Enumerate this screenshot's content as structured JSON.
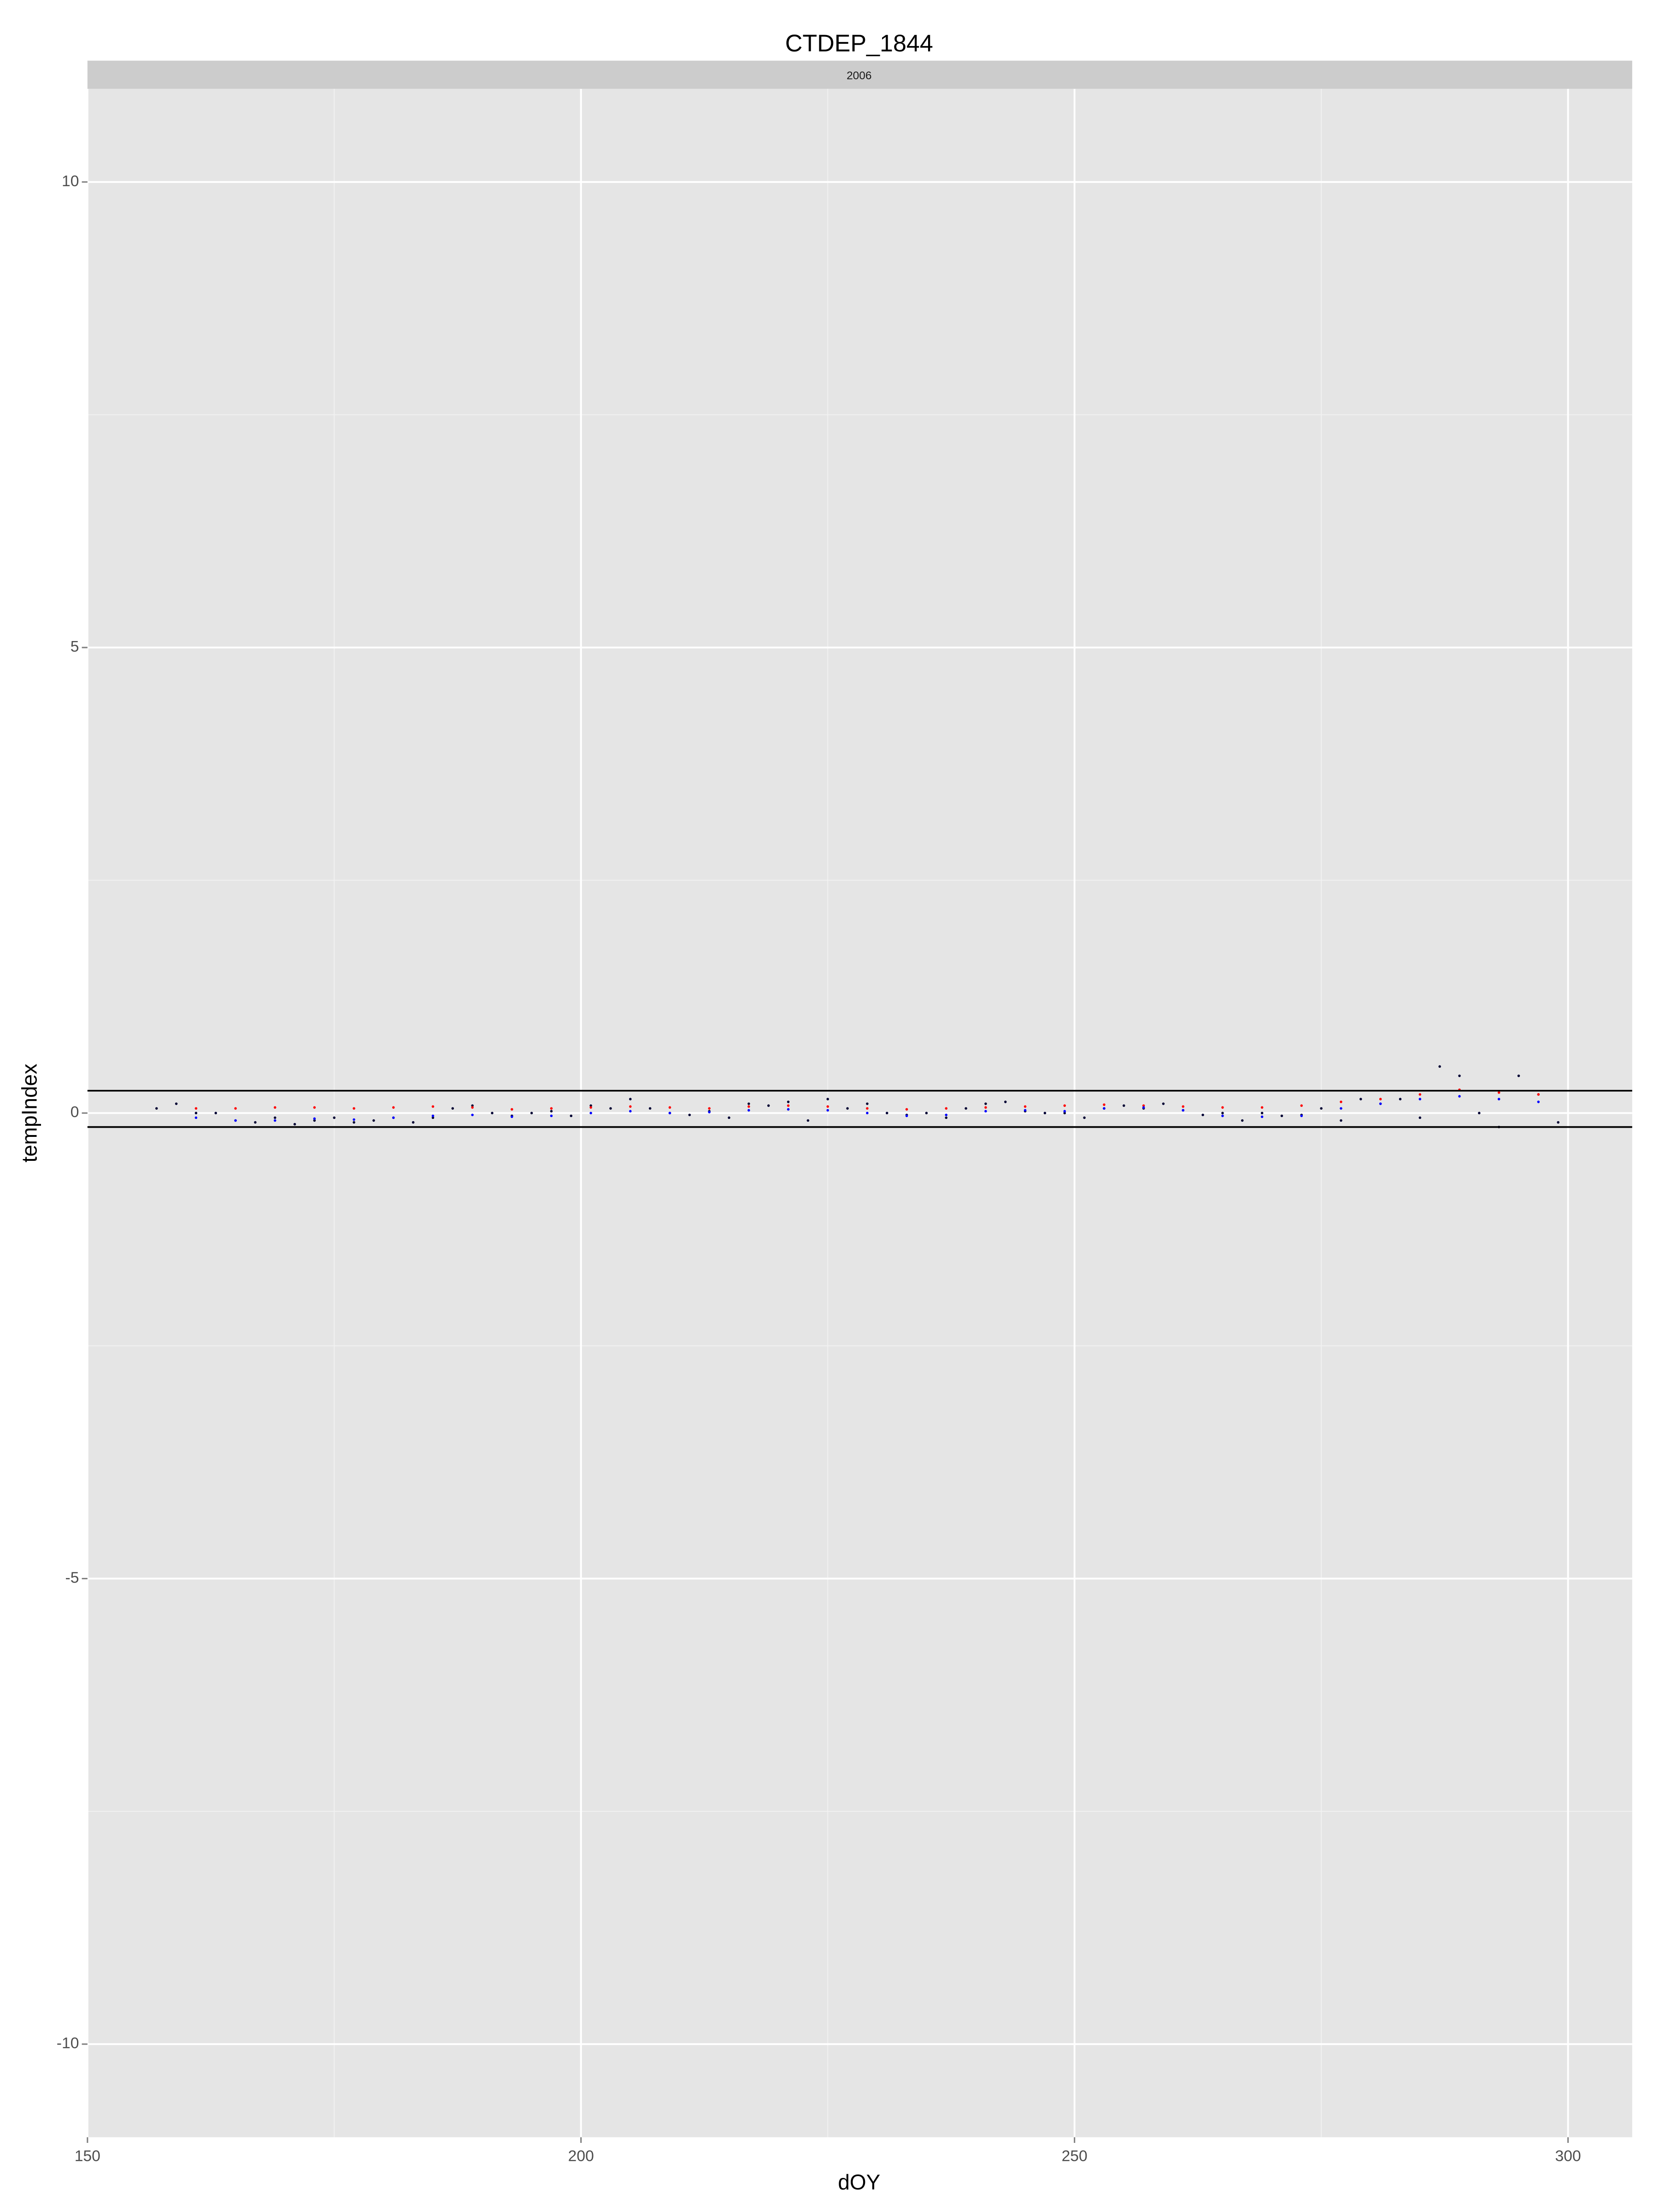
{
  "chart_data": {
    "type": "scatter",
    "title": "CTDEP_1844",
    "facet_label": "2006",
    "x_label": "dOY",
    "y_label": "tempIndex",
    "xlim": [
      150,
      306.5
    ],
    "xticks": [
      150,
      200,
      250,
      300
    ],
    "xminor": [
      175,
      225,
      275
    ],
    "ylim": [
      -11,
      11
    ],
    "yticks": [
      -10,
      -5,
      0,
      5,
      10
    ],
    "yminor": [
      -7.5,
      -2.5,
      2.5,
      7.5
    ],
    "grid": true,
    "hlines": [
      0.24,
      -0.15
    ],
    "series": [
      {
        "color": "#000033",
        "x": [
          157,
          159,
          161,
          163,
          165,
          167,
          169,
          171,
          173,
          175,
          177,
          179,
          181,
          183,
          185,
          187,
          189,
          191,
          193,
          195,
          197,
          199,
          201,
          203,
          205,
          207,
          209,
          211,
          213,
          215,
          217,
          219,
          221,
          223,
          225,
          227,
          229,
          231,
          233,
          235,
          237,
          239,
          241,
          243,
          245,
          247,
          249,
          251,
          253,
          255,
          257,
          259,
          261,
          263,
          265,
          267,
          269,
          271,
          273,
          275,
          277,
          279,
          281,
          283,
          285,
          287,
          289,
          291,
          293,
          295,
          297,
          299
        ],
        "values": [
          0.05,
          0.1,
          0.0,
          0.0,
          -0.08,
          -0.1,
          -0.05,
          -0.12,
          -0.08,
          -0.05,
          -0.1,
          -0.08,
          -0.05,
          -0.1,
          -0.05,
          0.05,
          0.08,
          0.0,
          -0.03,
          0.0,
          0.02,
          -0.03,
          0.08,
          0.05,
          0.15,
          0.05,
          0.0,
          -0.02,
          0.02,
          -0.05,
          0.1,
          0.08,
          0.12,
          -0.08,
          0.15,
          0.05,
          0.1,
          0.0,
          -0.02,
          0.0,
          -0.05,
          0.05,
          0.1,
          0.12,
          0.02,
          0.0,
          0.0,
          -0.05,
          0.05,
          0.08,
          0.05,
          0.1,
          0.03,
          -0.02,
          0.0,
          -0.08,
          0.0,
          -0.03,
          -0.02,
          0.05,
          -0.08,
          0.15,
          0.1,
          0.15,
          -0.05,
          0.5,
          0.4,
          0.0,
          -0.15,
          0.4,
          0.2,
          -0.1
        ]
      },
      {
        "color": "#ff0000",
        "x": [
          161,
          165,
          169,
          173,
          177,
          181,
          185,
          189,
          193,
          197,
          201,
          205,
          209,
          213,
          217,
          221,
          225,
          229,
          233,
          237,
          241,
          245,
          249,
          253,
          257,
          261,
          265,
          269,
          273,
          277,
          281,
          285,
          289,
          293,
          297
        ],
        "values": [
          0.05,
          0.05,
          0.06,
          0.06,
          0.05,
          0.06,
          0.07,
          0.06,
          0.04,
          0.05,
          0.06,
          0.07,
          0.06,
          0.05,
          0.07,
          0.08,
          0.07,
          0.05,
          0.04,
          0.05,
          0.06,
          0.07,
          0.08,
          0.09,
          0.08,
          0.07,
          0.06,
          0.06,
          0.08,
          0.12,
          0.15,
          0.2,
          0.25,
          0.22,
          0.2
        ]
      },
      {
        "color": "#0000ff",
        "x": [
          161,
          165,
          169,
          173,
          177,
          181,
          185,
          189,
          193,
          197,
          201,
          205,
          209,
          213,
          217,
          221,
          225,
          229,
          233,
          237,
          241,
          245,
          249,
          253,
          257,
          261,
          265,
          269,
          273,
          277,
          281,
          285,
          289,
          293,
          297
        ],
        "values": [
          -0.05,
          -0.08,
          -0.08,
          -0.06,
          -0.07,
          -0.05,
          -0.03,
          -0.02,
          -0.04,
          -0.03,
          0.0,
          0.02,
          0.0,
          0.01,
          0.03,
          0.04,
          0.03,
          0.0,
          -0.03,
          -0.02,
          0.02,
          0.03,
          0.02,
          0.05,
          0.06,
          0.03,
          -0.03,
          -0.04,
          -0.03,
          0.05,
          0.1,
          0.15,
          0.18,
          0.15,
          0.12
        ]
      }
    ]
  }
}
